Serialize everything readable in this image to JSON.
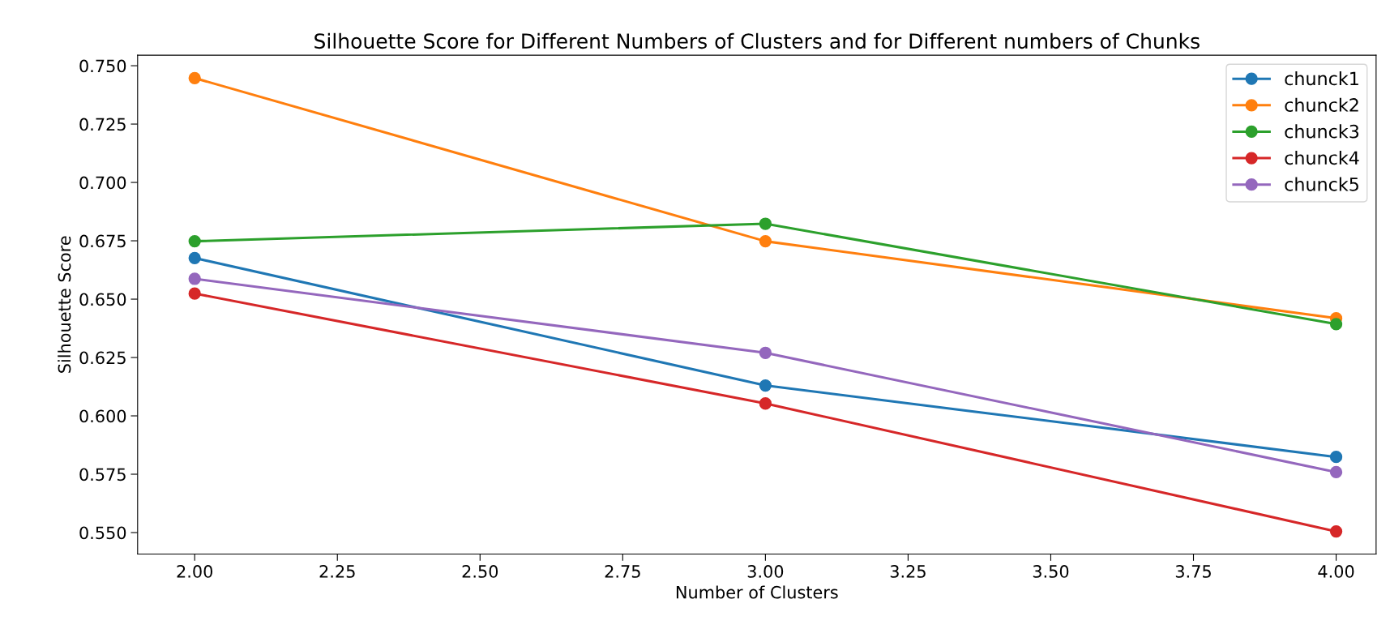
{
  "chart_data": {
    "type": "line",
    "title": "Silhouette Score for Different Numbers of Clusters and for Different numbers of Chunks",
    "xlabel": "Number of Clusters",
    "ylabel": "Silhouette Score",
    "x": [
      2,
      3,
      4
    ],
    "series": [
      {
        "name": "chunck1",
        "color": "#1f77b4",
        "values": [
          0.6676,
          0.613,
          0.5824
        ]
      },
      {
        "name": "chunck2",
        "color": "#ff7f0e",
        "values": [
          0.7447,
          0.6748,
          0.6418
        ]
      },
      {
        "name": "chunck3",
        "color": "#2ca02c",
        "values": [
          0.6748,
          0.6823,
          0.6393
        ]
      },
      {
        "name": "chunck4",
        "color": "#d62728",
        "values": [
          0.6524,
          0.6053,
          0.5505
        ]
      },
      {
        "name": "chunck5",
        "color": "#9467bd",
        "values": [
          0.6587,
          0.627,
          0.5759
        ]
      }
    ],
    "xlim": [
      1.9,
      4.07
    ],
    "ylim": [
      0.5408,
      0.7545
    ],
    "xticks": [
      {
        "value": 2,
        "label": "2.00"
      },
      {
        "value": 2.25,
        "label": "2.25"
      },
      {
        "value": 2.5,
        "label": "2.50"
      },
      {
        "value": 2.75,
        "label": "2.75"
      },
      {
        "value": 3,
        "label": "3.00"
      },
      {
        "value": 3.25,
        "label": "3.25"
      },
      {
        "value": 3.5,
        "label": "3.50"
      },
      {
        "value": 3.75,
        "label": "3.75"
      },
      {
        "value": 4,
        "label": "4.00"
      }
    ],
    "yticks": [
      {
        "value": 0.55,
        "label": "0.550"
      },
      {
        "value": 0.575,
        "label": "0.575"
      },
      {
        "value": 0.6,
        "label": "0.600"
      },
      {
        "value": 0.625,
        "label": "0.625"
      },
      {
        "value": 0.65,
        "label": "0.650"
      },
      {
        "value": 0.675,
        "label": "0.675"
      },
      {
        "value": 0.7,
        "label": "0.700"
      },
      {
        "value": 0.725,
        "label": "0.725"
      },
      {
        "value": 0.75,
        "label": "0.750"
      }
    ],
    "marker": "circle",
    "line_style": "solid",
    "legend": "top right",
    "grid": false
  }
}
